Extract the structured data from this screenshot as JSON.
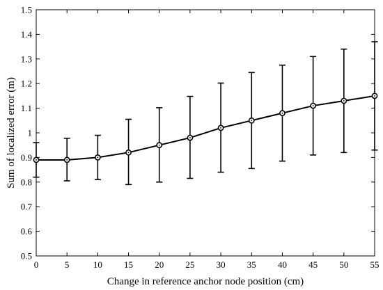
{
  "chart_data": {
    "type": "line",
    "title": "",
    "xlabel": "Change in reference anchor node position (cm)",
    "ylabel": "Sum of localized error (m)",
    "xlim": [
      0,
      55
    ],
    "ylim": [
      0.5,
      1.5
    ],
    "xticks": [
      0,
      5,
      10,
      15,
      20,
      25,
      30,
      35,
      40,
      45,
      50,
      55
    ],
    "yticks": [
      0.5,
      0.6,
      0.7,
      0.8,
      0.9,
      1,
      1.1,
      1.2,
      1.3,
      1.4,
      1.5
    ],
    "xtick_labels": [
      "0",
      "5",
      "10",
      "15",
      "20",
      "25",
      "30",
      "35",
      "40",
      "45",
      "50",
      "55"
    ],
    "ytick_labels": [
      "0.5",
      "0.6",
      "0.7",
      "0.8",
      "0.9",
      "1",
      "1.1",
      "1.2",
      "1.3",
      "1.4",
      "1.5"
    ],
    "grid": false,
    "marker": "open-circle",
    "color": "#000000",
    "series": [
      {
        "x": [
          0,
          5,
          10,
          15,
          20,
          25,
          30,
          35,
          40,
          45,
          50,
          55
        ],
        "y": [
          0.89,
          0.89,
          0.9,
          0.92,
          0.95,
          0.98,
          1.02,
          1.05,
          1.08,
          1.11,
          1.13,
          1.15
        ],
        "err_low": [
          0.82,
          0.805,
          0.81,
          0.79,
          0.8,
          0.815,
          0.84,
          0.855,
          0.885,
          0.91,
          0.92,
          0.93
        ],
        "err_high": [
          0.96,
          0.978,
          0.99,
          1.055,
          1.102,
          1.148,
          1.202,
          1.245,
          1.275,
          1.31,
          1.34,
          1.37
        ]
      }
    ]
  }
}
